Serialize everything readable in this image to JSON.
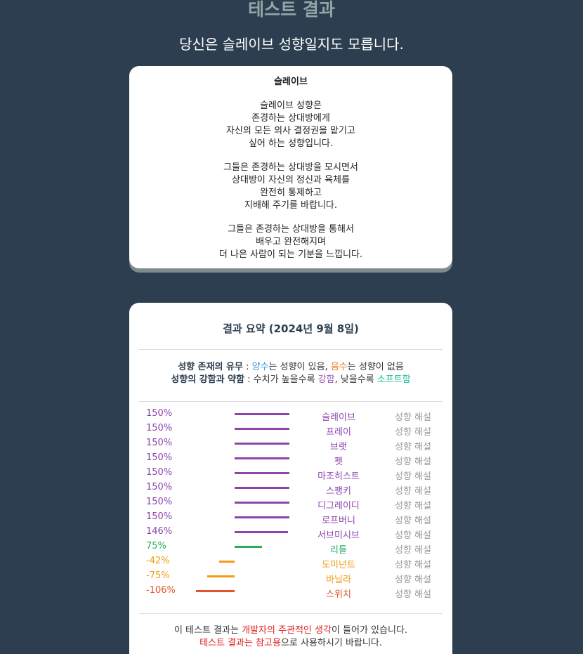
{
  "header": {
    "title": "테스트 결과",
    "subtitle": "당신은 슬레이브 성향일지도 모릅니다."
  },
  "description": {
    "title": "슬레이브",
    "paragraphs": [
      [
        "슬레이브 성향은",
        "존경하는 상대방에게",
        "자신의 모든 의사 결정권을 맡기고",
        "싶어 하는 성향입니다."
      ],
      [
        "그들은 존경하는 상대방을 모시면서",
        "상대방이 자신의 정신과 육체를",
        "완전히 통제하고",
        "지배해 주기를 바랍니다."
      ],
      [
        "그들은 존경하는 상대방을 통해서",
        "배우고 완전해지며",
        "더 나은 사람이 되는 기분을 느낍니다."
      ]
    ]
  },
  "summary": {
    "title": "결과 요약 (2024년 9월 8일)",
    "legend": [
      [
        {
          "text": "성향 존재의 유무",
          "bold": true
        },
        {
          "text": " : "
        },
        {
          "text": "양수",
          "color": "#3498db"
        },
        {
          "text": "는 성향이 있음, "
        },
        {
          "text": "음수",
          "color": "#e67e22"
        },
        {
          "text": "는 성향이 없음"
        }
      ],
      [
        {
          "text": "성향의 강함과 약함",
          "bold": true
        },
        {
          "text": " : 수치가 높을수록 "
        },
        {
          "text": "강함",
          "color": "#9b59b6"
        },
        {
          "text": ", 낮을수록 "
        },
        {
          "text": "소프트함",
          "color": "#1abc9c"
        }
      ]
    ],
    "detail_link": "성향 해설",
    "rows": [
      {
        "name": "슬레이브",
        "value": 150,
        "value_label": "150%",
        "color": "#8e44ad"
      },
      {
        "name": "프레이",
        "value": 150,
        "value_label": "150%",
        "color": "#8e44ad"
      },
      {
        "name": "브랫",
        "value": 150,
        "value_label": "150%",
        "color": "#8e44ad"
      },
      {
        "name": "펫",
        "value": 150,
        "value_label": "150%",
        "color": "#8e44ad"
      },
      {
        "name": "마조히스트",
        "value": 150,
        "value_label": "150%",
        "color": "#8e44ad"
      },
      {
        "name": "스팽키",
        "value": 150,
        "value_label": "150%",
        "color": "#8e44ad"
      },
      {
        "name": "디그레이디",
        "value": 150,
        "value_label": "150%",
        "color": "#8e44ad"
      },
      {
        "name": "로프버니",
        "value": 150,
        "value_label": "150%",
        "color": "#8e44ad"
      },
      {
        "name": "서브미시브",
        "value": 146,
        "value_label": "146%",
        "color": "#8e44ad"
      },
      {
        "name": "리틀",
        "value": 75,
        "value_label": "75%",
        "color": "#27ae60"
      },
      {
        "name": "도미넌트",
        "value": -42,
        "value_label": "-42%",
        "color": "#f39c12"
      },
      {
        "name": "바닐라",
        "value": -75,
        "value_label": "-75%",
        "color": "#f39c12"
      },
      {
        "name": "스위치",
        "value": -106,
        "value_label": "-106%",
        "color": "#e0552b"
      }
    ],
    "footer": [
      [
        {
          "text": "이 테스트 결과는 "
        },
        {
          "text": "개발자의 주관적인 생각",
          "color": "#e02020"
        },
        {
          "text": "이 들어가 있습니다."
        }
      ],
      [
        {
          "text": "테스트 결과는 참고용",
          "color": "#e02020"
        },
        {
          "text": "으로 사용하시기 바랍니다."
        }
      ]
    ]
  }
}
